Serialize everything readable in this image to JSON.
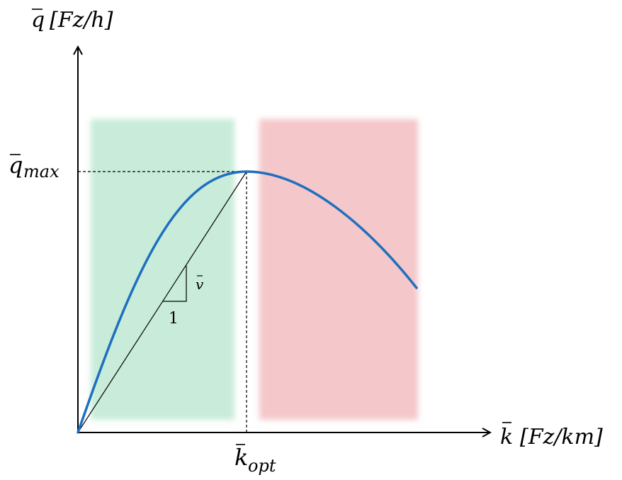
{
  "axes": {
    "y": {
      "symbol": "q",
      "unit": "[Fz/h]"
    },
    "x": {
      "symbol": "k",
      "unit": "[Fz/km]"
    }
  },
  "labels": {
    "q_max": {
      "symbol": "q",
      "subscript": "max"
    },
    "k_opt": {
      "symbol": "k",
      "subscript": "opt"
    },
    "slope_v": "v",
    "slope_run": "1"
  },
  "regions": {
    "free_flow_color": "#c8ecd9",
    "congested_color": "#f4c7ca"
  },
  "colors": {
    "curve": "#1f6fbf",
    "axis": "#000000"
  }
}
